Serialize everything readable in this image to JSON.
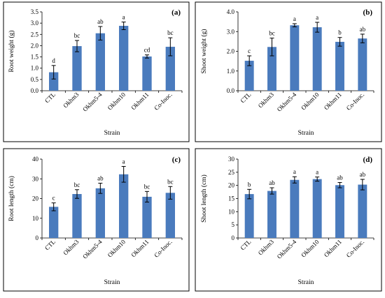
{
  "chart_data": [
    {
      "type": "bar",
      "panel_label": "(a)",
      "categories": [
        "CTL",
        "Okhm3",
        "Okhm5-4",
        "Okhm10",
        "Okhm11",
        "Co-Inoc."
      ],
      "values": [
        0.82,
        1.98,
        2.55,
        2.88,
        1.52,
        1.95
      ],
      "errors": [
        0.3,
        0.25,
        0.3,
        0.17,
        0.07,
        0.4
      ],
      "significance": [
        "d",
        "bc",
        "ab",
        "a",
        "cd",
        "bc"
      ],
      "ylabel": "Root weight (g)",
      "xlabel": "Strain",
      "ylim": [
        0,
        3.5
      ],
      "yticks": [
        "0.0",
        "0.5",
        "1.0",
        "1.5",
        "2.0",
        "2.5",
        "3.0",
        "3.5"
      ],
      "grid": false,
      "bar_color": "#4a7bbd"
    },
    {
      "type": "bar",
      "panel_label": "(b)",
      "categories": [
        "CTL",
        "Okhm3",
        "Okhm5-4",
        "Okhm10",
        "Okhm11",
        "Co-Inoc."
      ],
      "values": [
        1.52,
        2.22,
        3.32,
        3.22,
        2.48,
        2.65
      ],
      "errors": [
        0.25,
        0.45,
        0.08,
        0.25,
        0.22,
        0.22
      ],
      "significance": [
        "c",
        "bc",
        "a",
        "a",
        "b",
        "ab"
      ],
      "ylabel": "Shoot weight (g)",
      "xlabel": "Strain",
      "ylim": [
        0,
        4
      ],
      "yticks": [
        "0.0",
        "1.0",
        "2.0",
        "3.0",
        "4.0"
      ],
      "grid": false,
      "bar_color": "#4a7bbd"
    },
    {
      "type": "bar",
      "panel_label": "(c)",
      "categories": [
        "CTL",
        "Okhm3",
        "Okhm5-4",
        "Okhm10",
        "Okhm11",
        "Co-Inoc."
      ],
      "values": [
        15.8,
        22.3,
        25.2,
        32.3,
        20.9,
        22.9
      ],
      "errors": [
        2.0,
        2.2,
        2.6,
        4.0,
        2.7,
        3.2
      ],
      "significance": [
        "c",
        "bc",
        "ab",
        "a",
        "bc",
        "bc"
      ],
      "ylabel": "Root length (cm)",
      "xlabel": "Strain",
      "ylim": [
        0,
        40
      ],
      "yticks": [
        "0",
        "10",
        "20",
        "30",
        "40"
      ],
      "grid": false,
      "bar_color": "#4a7bbd"
    },
    {
      "type": "bar",
      "panel_label": "(d)",
      "categories": [
        "CTL",
        "Okhm3",
        "Okhm5-4",
        "Okhm10",
        "Okhm11",
        "Co-Inoc."
      ],
      "values": [
        16.7,
        17.9,
        22.1,
        22.4,
        20.1,
        20.3
      ],
      "errors": [
        1.8,
        1.2,
        1.2,
        0.8,
        1.0,
        2.0
      ],
      "significance": [
        "b",
        "ab",
        "a",
        "a",
        "ab",
        "ab"
      ],
      "ylabel": "Shoot length (cm)",
      "xlabel": "Strain",
      "ylim": [
        0,
        30
      ],
      "yticks": [
        "0",
        "5",
        "10",
        "15",
        "20",
        "25",
        "30"
      ],
      "grid": false,
      "bar_color": "#4a7bbd"
    }
  ]
}
